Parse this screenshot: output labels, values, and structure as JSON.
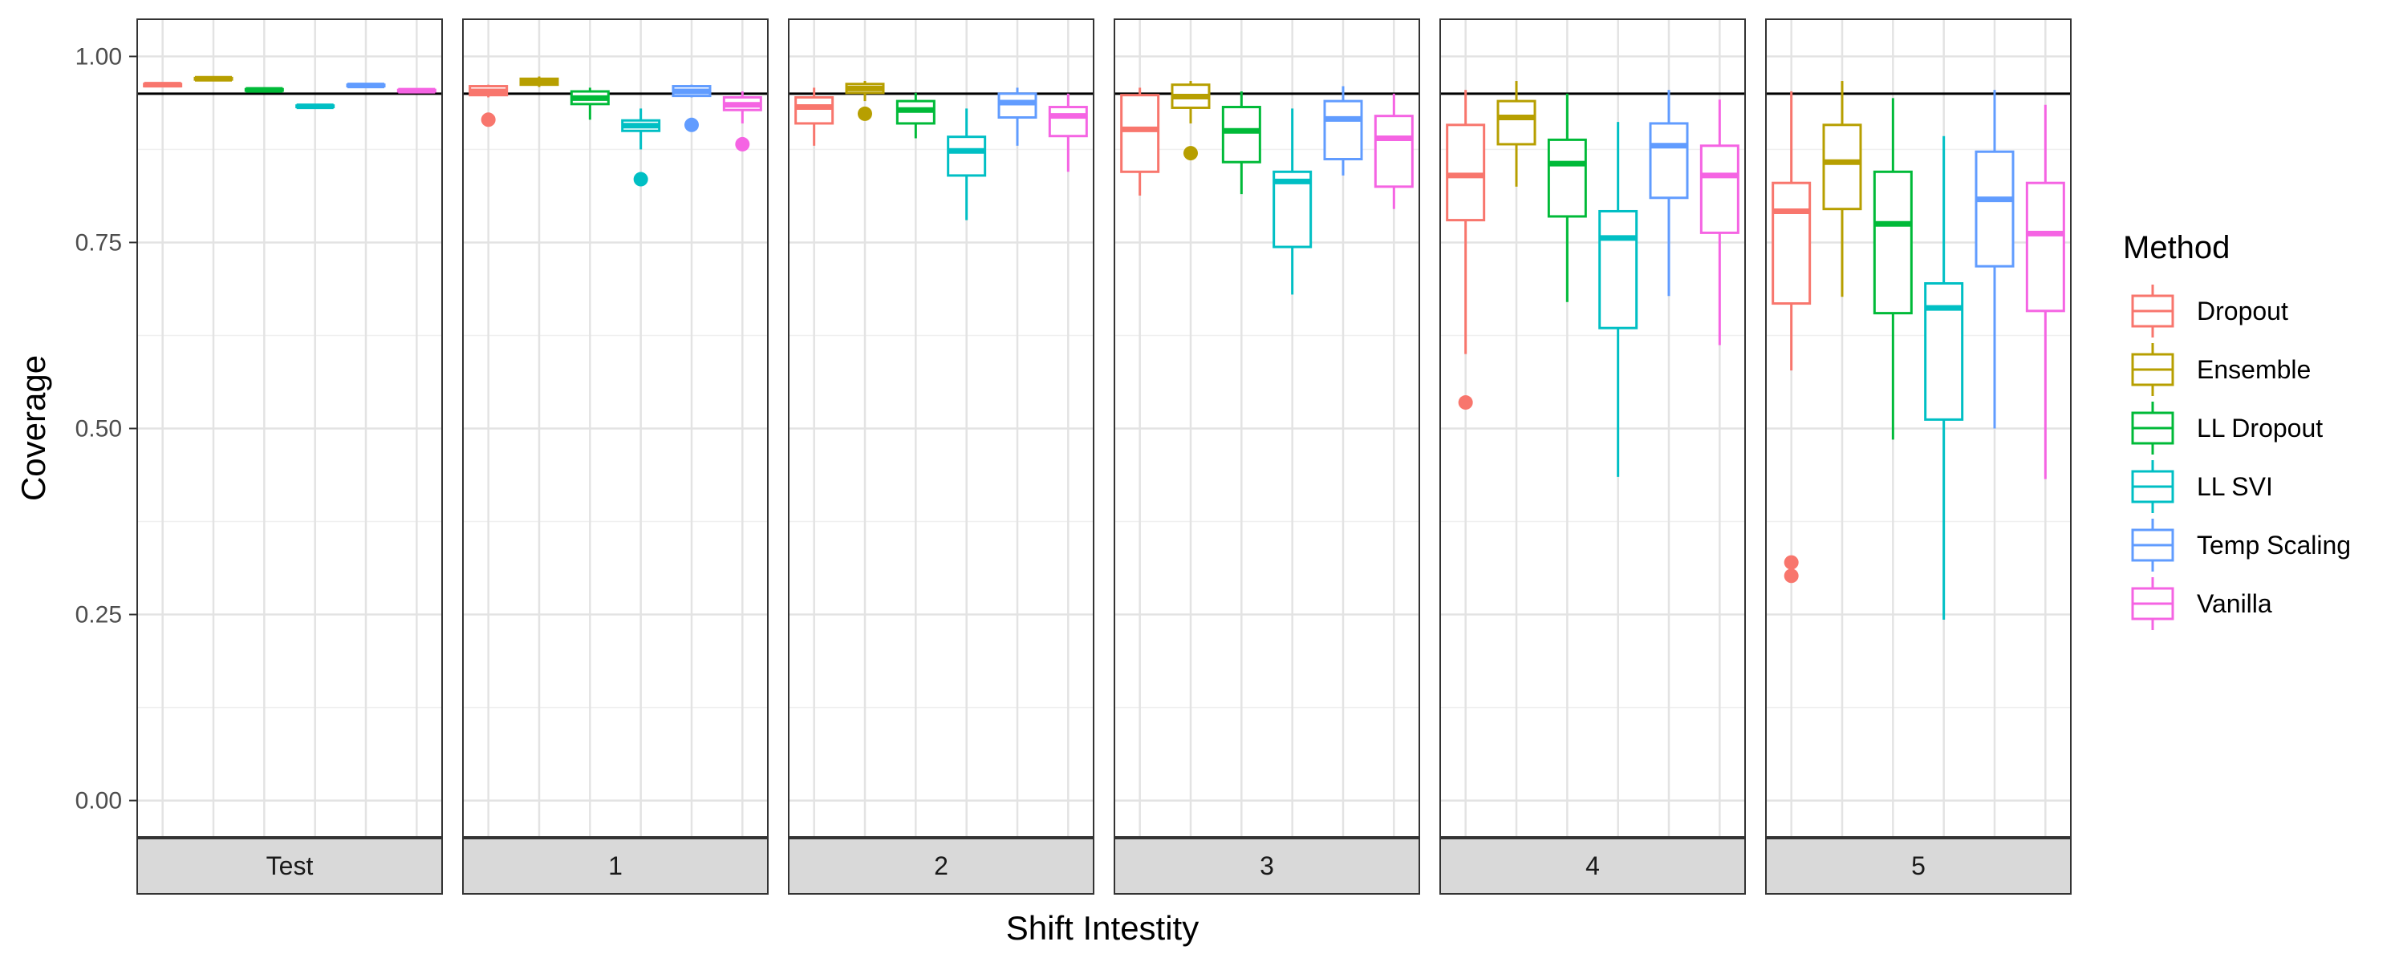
{
  "chart_data": {
    "type": "boxplot",
    "ylabel": "Coverage",
    "xlabel": "Shift Intestity",
    "ylim": [
      -0.05,
      1.05
    ],
    "yticks": [
      0.0,
      0.25,
      0.5,
      0.75,
      1.0
    ],
    "ytick_labels": [
      "0.00",
      "0.25",
      "0.50",
      "0.75",
      "1.00"
    ],
    "reference_line": 0.95,
    "grid": true,
    "legend": {
      "title": "Method",
      "position": "right"
    },
    "facets": [
      "Test",
      "1",
      "2",
      "3",
      "4",
      "5"
    ],
    "series": [
      {
        "name": "Dropout",
        "color": "#F8766D"
      },
      {
        "name": "Ensemble",
        "color": "#B79F00"
      },
      {
        "name": "LL Dropout",
        "color": "#00BA38"
      },
      {
        "name": "LL SVI",
        "color": "#00BFC4"
      },
      {
        "name": "Temp Scaling",
        "color": "#619CFF"
      },
      {
        "name": "Vanilla",
        "color": "#F564E3"
      }
    ],
    "boxes": [
      [
        {
          "min": 0.96,
          "q1": 0.96,
          "median": 0.962,
          "q3": 0.963,
          "max": 0.963,
          "outliers": []
        },
        {
          "min": 0.969,
          "q1": 0.969,
          "median": 0.97,
          "q3": 0.971,
          "max": 0.971,
          "outliers": []
        },
        {
          "min": 0.954,
          "q1": 0.954,
          "median": 0.955,
          "q3": 0.956,
          "max": 0.956,
          "outliers": []
        },
        {
          "min": 0.932,
          "q1": 0.932,
          "median": 0.933,
          "q3": 0.934,
          "max": 0.934,
          "outliers": []
        },
        {
          "min": 0.96,
          "q1": 0.96,
          "median": 0.961,
          "q3": 0.962,
          "max": 0.962,
          "outliers": []
        },
        {
          "min": 0.953,
          "q1": 0.953,
          "median": 0.954,
          "q3": 0.955,
          "max": 0.955,
          "outliers": []
        }
      ],
      [
        {
          "min": 0.945,
          "q1": 0.948,
          "median": 0.953,
          "q3": 0.96,
          "max": 0.962,
          "outliers": [
            0.915
          ]
        },
        {
          "min": 0.959,
          "q1": 0.962,
          "median": 0.966,
          "q3": 0.97,
          "max": 0.973,
          "outliers": []
        },
        {
          "min": 0.915,
          "q1": 0.936,
          "median": 0.944,
          "q3": 0.953,
          "max": 0.958,
          "outliers": []
        },
        {
          "min": 0.875,
          "q1": 0.9,
          "median": 0.907,
          "q3": 0.914,
          "max": 0.93,
          "outliers": [
            0.835
          ]
        },
        {
          "min": 0.945,
          "q1": 0.947,
          "median": 0.953,
          "q3": 0.96,
          "max": 0.962,
          "outliers": [
            0.908
          ]
        },
        {
          "min": 0.91,
          "q1": 0.928,
          "median": 0.935,
          "q3": 0.945,
          "max": 0.953,
          "outliers": [
            0.882
          ]
        }
      ],
      [
        {
          "min": 0.88,
          "q1": 0.91,
          "median": 0.932,
          "q3": 0.945,
          "max": 0.958,
          "outliers": []
        },
        {
          "min": 0.94,
          "q1": 0.951,
          "median": 0.957,
          "q3": 0.963,
          "max": 0.967,
          "outliers": [
            0.923
          ]
        },
        {
          "min": 0.89,
          "q1": 0.91,
          "median": 0.928,
          "q3": 0.94,
          "max": 0.951,
          "outliers": []
        },
        {
          "min": 0.78,
          "q1": 0.84,
          "median": 0.873,
          "q3": 0.892,
          "max": 0.93,
          "outliers": []
        },
        {
          "min": 0.88,
          "q1": 0.918,
          "median": 0.938,
          "q3": 0.95,
          "max": 0.958,
          "outliers": []
        },
        {
          "min": 0.845,
          "q1": 0.893,
          "median": 0.92,
          "q3": 0.932,
          "max": 0.95,
          "outliers": []
        }
      ],
      [
        {
          "min": 0.813,
          "q1": 0.845,
          "median": 0.902,
          "q3": 0.948,
          "max": 0.958,
          "outliers": []
        },
        {
          "min": 0.91,
          "q1": 0.931,
          "median": 0.946,
          "q3": 0.962,
          "max": 0.967,
          "outliers": [
            0.87
          ]
        },
        {
          "min": 0.815,
          "q1": 0.858,
          "median": 0.9,
          "q3": 0.932,
          "max": 0.953,
          "outliers": []
        },
        {
          "min": 0.68,
          "q1": 0.744,
          "median": 0.832,
          "q3": 0.845,
          "max": 0.93,
          "outliers": []
        },
        {
          "min": 0.84,
          "q1": 0.862,
          "median": 0.916,
          "q3": 0.94,
          "max": 0.96,
          "outliers": []
        },
        {
          "min": 0.795,
          "q1": 0.825,
          "median": 0.89,
          "q3": 0.92,
          "max": 0.95,
          "outliers": []
        }
      ],
      [
        {
          "min": 0.6,
          "q1": 0.78,
          "median": 0.84,
          "q3": 0.908,
          "max": 0.955,
          "outliers": [
            0.535
          ]
        },
        {
          "min": 0.825,
          "q1": 0.882,
          "median": 0.918,
          "q3": 0.94,
          "max": 0.967,
          "outliers": []
        },
        {
          "min": 0.67,
          "q1": 0.785,
          "median": 0.856,
          "q3": 0.888,
          "max": 0.95,
          "outliers": []
        },
        {
          "min": 0.435,
          "q1": 0.635,
          "median": 0.756,
          "q3": 0.792,
          "max": 0.912,
          "outliers": []
        },
        {
          "min": 0.678,
          "q1": 0.81,
          "median": 0.88,
          "q3": 0.91,
          "max": 0.955,
          "outliers": []
        },
        {
          "min": 0.612,
          "q1": 0.763,
          "median": 0.84,
          "q3": 0.88,
          "max": 0.942,
          "outliers": []
        }
      ],
      [
        {
          "min": 0.578,
          "q1": 0.668,
          "median": 0.792,
          "q3": 0.83,
          "max": 0.953,
          "outliers": [
            0.32,
            0.302
          ]
        },
        {
          "min": 0.677,
          "q1": 0.795,
          "median": 0.858,
          "q3": 0.908,
          "max": 0.967,
          "outliers": []
        },
        {
          "min": 0.485,
          "q1": 0.655,
          "median": 0.775,
          "q3": 0.845,
          "max": 0.944,
          "outliers": []
        },
        {
          "min": 0.243,
          "q1": 0.512,
          "median": 0.662,
          "q3": 0.695,
          "max": 0.893,
          "outliers": []
        },
        {
          "min": 0.5,
          "q1": 0.718,
          "median": 0.808,
          "q3": 0.872,
          "max": 0.955,
          "outliers": []
        },
        {
          "min": 0.432,
          "q1": 0.658,
          "median": 0.762,
          "q3": 0.83,
          "max": 0.935,
          "outliers": []
        }
      ]
    ]
  }
}
